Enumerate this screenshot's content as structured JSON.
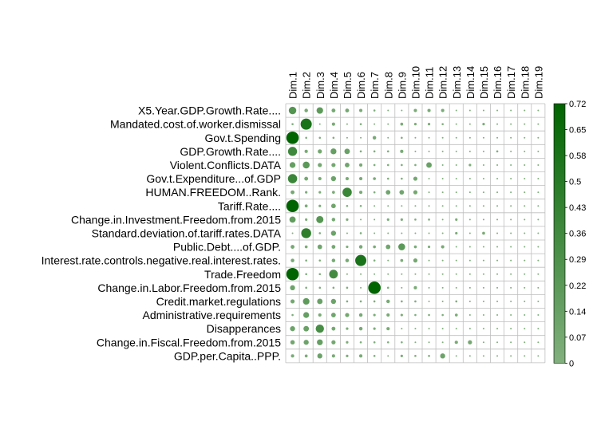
{
  "chart_data": {
    "type": "heatmap",
    "rows": [
      "X5.Year.GDP.Growth.Rate....",
      "Mandated.cost.of.worker.dismissal",
      "Gov.t.Spending",
      "GDP.Growth.Rate....",
      "Violent.Conflicts.DATA",
      "Gov.t.Expenditure...of.GDP",
      "HUMAN.FREEDOM..Rank.",
      "Tariff.Rate....",
      "Change.in.Investment.Freedom.from.2015",
      "Standard.deviation.of.tariff.rates.DATA",
      "Public.Debt....of.GDP.",
      "Interest.rate.controls.negative.real.interest.rates.",
      "Trade.Freedom",
      "Change.in.Labor.Freedom.from.2015",
      "Credit.market.regulations",
      "Administrative.requirements",
      "Disapperances",
      "Change.in.Fiscal.Freedom.from.2015",
      "GDP.per.Capita..PPP."
    ],
    "columns": [
      "Dim.1",
      "Dim.2",
      "Dim.3",
      "Dim.4",
      "Dim.5",
      "Dim.6",
      "Dim.7",
      "Dim.8",
      "Dim.9",
      "Dim.10",
      "Dim.11",
      "Dim.12",
      "Dim.13",
      "Dim.14",
      "Dim.15",
      "Dim.16",
      "Dim.17",
      "Dim.18",
      "Dim.19"
    ],
    "values": [
      [
        0.26,
        0.06,
        0.2,
        0.07,
        0.07,
        0.05,
        0.02,
        0.01,
        0.01,
        0.05,
        0.05,
        0.05,
        0.01,
        0.01,
        0.01,
        0.01,
        0.01,
        0.01,
        0.01
      ],
      [
        0.02,
        0.58,
        0.01,
        0.05,
        0.01,
        0.02,
        0.01,
        0.01,
        0.04,
        0.03,
        0.03,
        0.02,
        0.01,
        0.01,
        0.03,
        0.01,
        0.01,
        0.01,
        0.01
      ],
      [
        0.72,
        0.02,
        0.02,
        0.02,
        0.01,
        0.01,
        0.06,
        0.01,
        0.02,
        0.01,
        0.01,
        0.01,
        0.01,
        0.01,
        0.01,
        0.01,
        0.01,
        0.01,
        0.01
      ],
      [
        0.38,
        0.05,
        0.08,
        0.16,
        0.14,
        0.02,
        0.02,
        0.02,
        0.05,
        0.01,
        0.01,
        0.01,
        0.01,
        0.01,
        0.01,
        0.02,
        0.01,
        0.01,
        0.01
      ],
      [
        0.16,
        0.22,
        0.08,
        0.08,
        0.1,
        0.05,
        0.02,
        0.02,
        0.02,
        0.02,
        0.14,
        0.01,
        0.01,
        0.03,
        0.01,
        0.01,
        0.01,
        0.01,
        0.01
      ],
      [
        0.4,
        0.07,
        0.05,
        0.12,
        0.05,
        0.05,
        0.04,
        0.02,
        0.02,
        0.08,
        0.01,
        0.01,
        0.01,
        0.01,
        0.01,
        0.01,
        0.01,
        0.01,
        0.01
      ],
      [
        0.07,
        0.03,
        0.03,
        0.04,
        0.4,
        0.05,
        0.02,
        0.1,
        0.1,
        0.08,
        0.01,
        0.01,
        0.01,
        0.01,
        0.01,
        0.01,
        0.01,
        0.01,
        0.01
      ],
      [
        0.72,
        0.04,
        0.03,
        0.1,
        0.02,
        0.02,
        0.01,
        0.01,
        0.01,
        0.01,
        0.01,
        0.01,
        0.01,
        0.01,
        0.01,
        0.01,
        0.01,
        0.01,
        0.01
      ],
      [
        0.18,
        0.03,
        0.24,
        0.06,
        0.03,
        0.01,
        0.01,
        0.03,
        0.03,
        0.02,
        0.02,
        0.01,
        0.03,
        0.01,
        0.01,
        0.01,
        0.01,
        0.01,
        0.01
      ],
      [
        0.01,
        0.46,
        0.02,
        0.12,
        0.01,
        0.02,
        0.01,
        0.01,
        0.01,
        0.01,
        0.01,
        0.01,
        0.03,
        0.01,
        0.04,
        0.01,
        0.01,
        0.01,
        0.01
      ],
      [
        0.07,
        0.04,
        0.1,
        0.07,
        0.03,
        0.06,
        0.04,
        0.1,
        0.22,
        0.04,
        0.03,
        0.05,
        0.01,
        0.01,
        0.01,
        0.01,
        0.01,
        0.01,
        0.01
      ],
      [
        0.06,
        0.02,
        0.02,
        0.06,
        0.06,
        0.58,
        0.02,
        0.01,
        0.04,
        0.08,
        0.01,
        0.01,
        0.01,
        0.01,
        0.01,
        0.01,
        0.01,
        0.01,
        0.01
      ],
      [
        0.72,
        0.02,
        0.02,
        0.35,
        0.01,
        0.01,
        0.01,
        0.01,
        0.01,
        0.01,
        0.01,
        0.01,
        0.01,
        0.01,
        0.01,
        0.01,
        0.01,
        0.01,
        0.01
      ],
      [
        0.12,
        0.02,
        0.02,
        0.02,
        0.02,
        0.01,
        0.72,
        0.02,
        0.01,
        0.05,
        0.01,
        0.01,
        0.01,
        0.01,
        0.01,
        0.01,
        0.01,
        0.01,
        0.01
      ],
      [
        0.08,
        0.2,
        0.14,
        0.12,
        0.02,
        0.02,
        0.02,
        0.06,
        0.02,
        0.02,
        0.01,
        0.01,
        0.02,
        0.01,
        0.01,
        0.01,
        0.01,
        0.01,
        0.01
      ],
      [
        0.02,
        0.16,
        0.05,
        0.1,
        0.08,
        0.06,
        0.03,
        0.05,
        0.03,
        0.02,
        0.02,
        0.02,
        0.04,
        0.01,
        0.01,
        0.01,
        0.01,
        0.01,
        0.01
      ],
      [
        0.12,
        0.14,
        0.32,
        0.07,
        0.03,
        0.06,
        0.03,
        0.05,
        0.01,
        0.01,
        0.01,
        0.01,
        0.01,
        0.01,
        0.01,
        0.01,
        0.01,
        0.01,
        0.01
      ],
      [
        0.09,
        0.12,
        0.16,
        0.08,
        0.03,
        0.02,
        0.02,
        0.02,
        0.02,
        0.01,
        0.01,
        0.01,
        0.05,
        0.08,
        0.01,
        0.01,
        0.01,
        0.01,
        0.01
      ],
      [
        0.05,
        0.04,
        0.12,
        0.05,
        0.03,
        0.05,
        0.02,
        0.01,
        0.03,
        0.02,
        0.02,
        0.12,
        0.01,
        0.01,
        0.01,
        0.01,
        0.01,
        0.01,
        0.01
      ]
    ],
    "color_scale": {
      "range": [
        0,
        0.72
      ],
      "low_color": "#82B07E",
      "high_color": "#006400",
      "ticks": [
        "0.72",
        "0.65",
        "0.58",
        "0.5",
        "0.43",
        "0.36",
        "0.29",
        "0.22",
        "0.14",
        "0.07",
        "0"
      ]
    },
    "legend_placement": "right",
    "grid": true,
    "grid_color": "#BEBEBE"
  }
}
